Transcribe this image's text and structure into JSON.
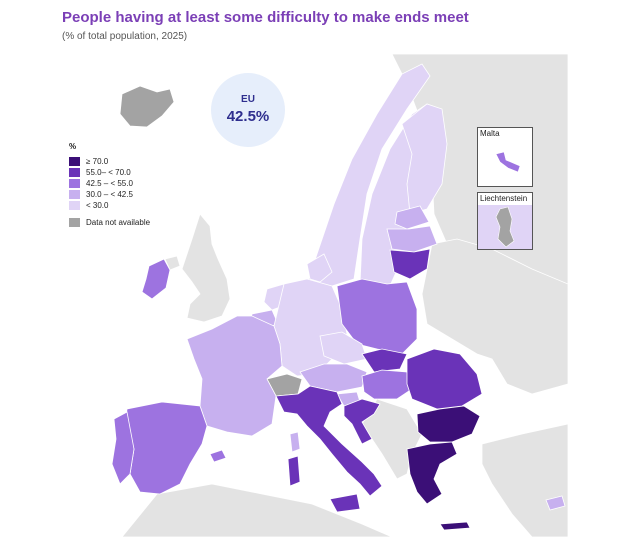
{
  "title": "People having at least some difficulty to make ends meet",
  "subtitle": "(% of total population, 2025)",
  "eu_badge": {
    "label": "EU",
    "value": "42.5%"
  },
  "legend": {
    "title": "%",
    "items": [
      {
        "label": "≥ 70.0",
        "color": "#3b0f77"
      },
      {
        "label": "55.0– < 70.0",
        "color": "#6a33b8"
      },
      {
        "label": "42.5 – < 55.0",
        "color": "#9d73e0"
      },
      {
        "label": "30.0 – < 42.5",
        "color": "#c7b0ef"
      },
      {
        "label": "< 30.0",
        "color": "#e0d4f6"
      }
    ],
    "na_label": "Data not available",
    "na_color": "#a3a3a3"
  },
  "insets": {
    "malta": "Malta",
    "liechtenstein": "Liechtenstein"
  },
  "colors": {
    "non_eu_land": "#e3e3e3",
    "sea": "#ffffff",
    "border": "#ffffff",
    "title": "#7b3fb6"
  },
  "regions": [
    {
      "id": "iceland",
      "class": "na"
    },
    {
      "id": "ireland",
      "class": 2
    },
    {
      "id": "uk",
      "class": "outside"
    },
    {
      "id": "norway",
      "class": 4
    },
    {
      "id": "sweden",
      "class": 4
    },
    {
      "id": "finland",
      "class": 4
    },
    {
      "id": "estonia",
      "class": 3
    },
    {
      "id": "latvia",
      "class": 3
    },
    {
      "id": "lithuania",
      "class": 1
    },
    {
      "id": "denmark",
      "class": 4
    },
    {
      "id": "netherlands",
      "class": 4
    },
    {
      "id": "belgium",
      "class": 3
    },
    {
      "id": "luxembourg",
      "class": 4
    },
    {
      "id": "germany",
      "class": 4
    },
    {
      "id": "poland",
      "class": 2
    },
    {
      "id": "czechia",
      "class": 4
    },
    {
      "id": "slovakia",
      "class": 1
    },
    {
      "id": "austria",
      "class": 3
    },
    {
      "id": "switzerland",
      "class": "na"
    },
    {
      "id": "hungary",
      "class": 2
    },
    {
      "id": "slovenia",
      "class": 3
    },
    {
      "id": "croatia",
      "class": 1
    },
    {
      "id": "romania",
      "class": 1
    },
    {
      "id": "bulgaria",
      "class": 0
    },
    {
      "id": "greece",
      "class": 0
    },
    {
      "id": "cyprus",
      "class": 3
    },
    {
      "id": "france",
      "class": 3
    },
    {
      "id": "spain",
      "class": 2
    },
    {
      "id": "portugal",
      "class": 2
    },
    {
      "id": "italy",
      "class": 1
    },
    {
      "id": "western_balkans",
      "class": "na"
    },
    {
      "id": "malta",
      "class": 2
    },
    {
      "id": "liechtenstein",
      "class": "na"
    }
  ]
}
